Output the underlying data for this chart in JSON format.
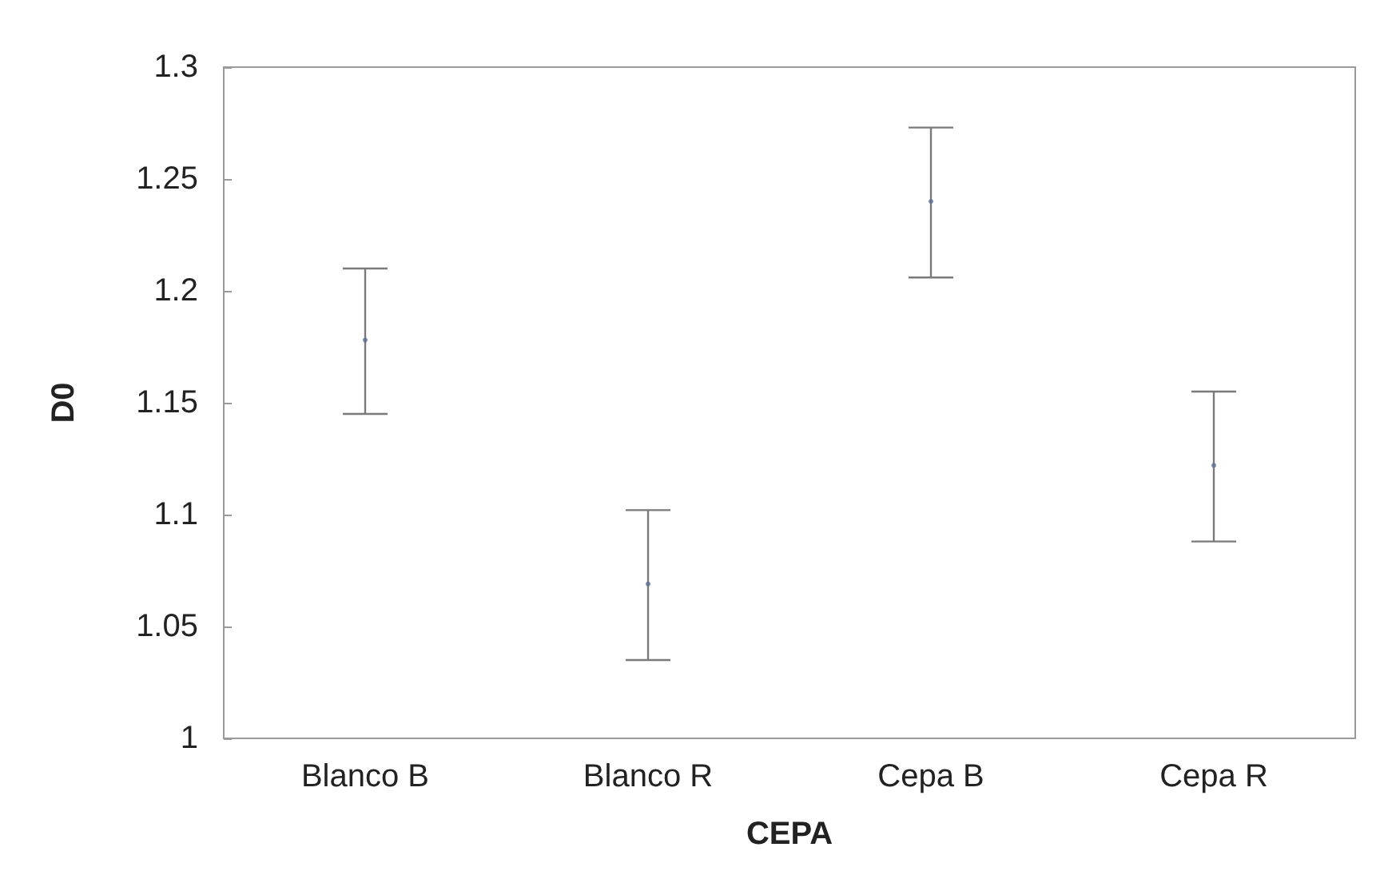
{
  "chart_data": {
    "type": "scatter",
    "xlabel": "CEPA",
    "ylabel": "D0",
    "categories": [
      "Blanco B",
      "Blanco R",
      "Cepa B",
      "Cepa R"
    ],
    "values": [
      1.178,
      1.069,
      1.24,
      1.122
    ],
    "errors": [
      [
        1.145,
        1.21
      ],
      [
        1.035,
        1.102
      ],
      [
        1.206,
        1.273
      ],
      [
        1.088,
        1.155
      ]
    ],
    "color": "#5a6fa0",
    "marker": "circle",
    "ylim": [
      1,
      1.3
    ],
    "yticks": [
      1,
      1.05,
      1.1,
      1.15,
      1.2,
      1.25,
      1.3
    ],
    "grid": false
  }
}
